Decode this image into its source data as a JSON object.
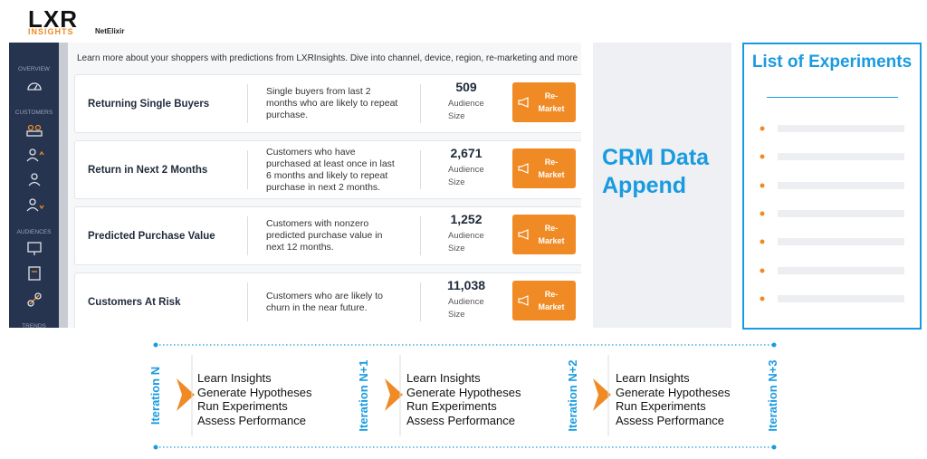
{
  "header": {
    "logo": "LXR",
    "logo_sub": "INSIGHTS",
    "partner": "NetElixir"
  },
  "sidebar": {
    "sections": [
      "OVERVIEW",
      "CUSTOMERS",
      "AUDIENCES",
      "TRENDS"
    ]
  },
  "dashboard": {
    "intro": "Learn more about your shoppers with predictions from LXRInsights. Dive into channel, device, region, re-marketing and more",
    "cards": [
      {
        "name": "Returning Single Buyers",
        "description": "Single buyers from last 2 months who are likely to repeat purchase.",
        "count": "509",
        "size_label": "Audience Size",
        "button": "Re-Market"
      },
      {
        "name": "Return in Next 2 Months",
        "description": "Customers who have purchased at least once in last 6 months and likely to repeat purchase in next 2 months.",
        "count": "2,671",
        "size_label": "Audience Size",
        "button": "Re-Market"
      },
      {
        "name": "Predicted Purchase Value",
        "description": "Customers with nonzero predicted purchase value in next 12 months.",
        "count": "1,252",
        "size_label": "Audience Size",
        "button": "Re-Market"
      },
      {
        "name": "Customers At Risk",
        "description": "Customers who are likely to churn in the near future.",
        "count": "11,038",
        "size_label": "Audience Size",
        "button": "Re-Market"
      }
    ]
  },
  "crm": {
    "text": "CRM Data Append"
  },
  "experiments": {
    "title": "List of Experiments"
  },
  "iterations": {
    "labels": [
      "Iteration N",
      "Iteration N+1",
      "Iteration N+2",
      "Iteration N+3"
    ],
    "groups": [
      [
        "Learn Insights",
        "Generate Hypotheses",
        "Run Experiments",
        "Assess Performance"
      ],
      [
        "Learn Insights",
        "Generate Hypotheses",
        "Run Experiments",
        "Assess Performance"
      ],
      [
        "Learn Insights",
        "Generate Hypotheses",
        "Run Experiments",
        "Assess Performance"
      ]
    ]
  }
}
